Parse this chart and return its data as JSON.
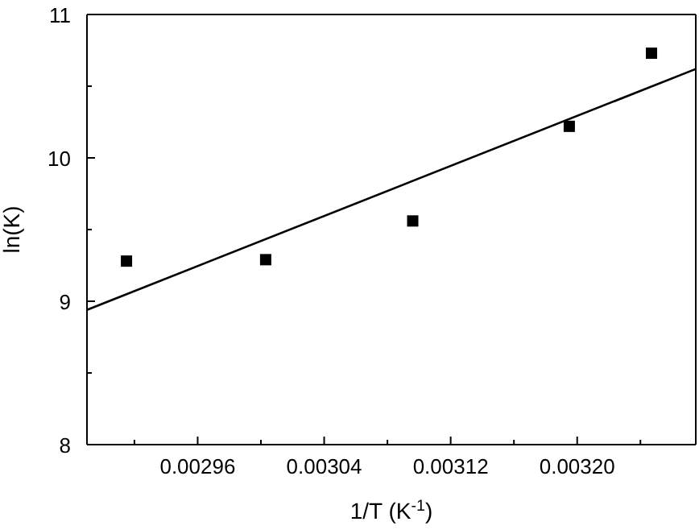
{
  "chart_data": {
    "type": "scatter",
    "xlabel": "1/T (K$^{-1}$)",
    "ylabel": "ln(K)",
    "xlim": [
      0.00289,
      0.003275
    ],
    "xticks": [
      {
        "value": 0.00292,
        "label": null
      },
      0.00296,
      {
        "value": 0.003,
        "label": null
      },
      0.00304,
      {
        "value": 0.00308,
        "label": null
      },
      0.00312,
      {
        "value": 0.00316,
        "label": null
      },
      {
        "value": 0.0032,
        "label": "0.00320"
      },
      {
        "value": 0.00324,
        "label": null
      }
    ],
    "ylim": [
      8,
      11
    ],
    "yticks": [
      8,
      {
        "value": 8.5,
        "label": null
      },
      9,
      {
        "value": 9.5,
        "label": null
      },
      10,
      {
        "value": 10.5,
        "label": null
      },
      11
    ],
    "legend": false,
    "marker": "square",
    "series": [
      {
        "color": "#000000",
        "x": [
          0.002915,
          0.003003,
          0.003096,
          0.003195,
          0.003247
        ],
        "values": [
          9.28,
          9.29,
          9.56,
          10.22,
          10.73
        ]
      },
      {
        "type": "line",
        "color": "#000000",
        "line_style": "solid",
        "marker": "none",
        "x": [
          0.00289,
          0.003275
        ],
        "values": [
          8.94,
          10.62
        ]
      }
    ]
  }
}
